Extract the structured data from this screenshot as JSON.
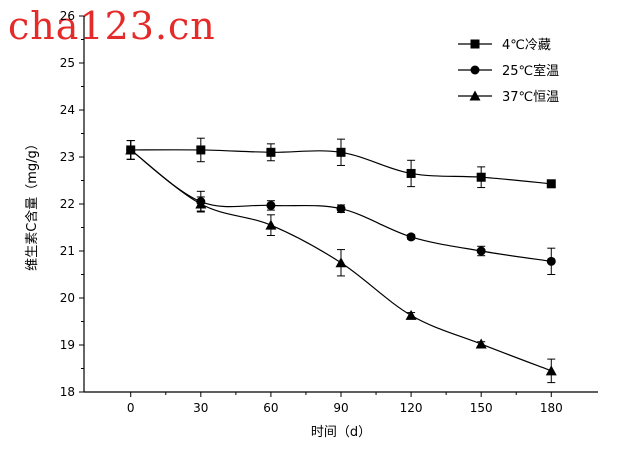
{
  "watermark": "cha123.cn",
  "chart_data": {
    "type": "line",
    "xlabel": "时间（d）",
    "ylabel": "维生素C含量（mg/g）",
    "x": [
      0,
      30,
      60,
      90,
      120,
      150,
      180
    ],
    "xlim": [
      -20,
      200
    ],
    "ylim": [
      18,
      26
    ],
    "xticks": [
      0,
      30,
      60,
      90,
      120,
      150,
      180
    ],
    "yticks": [
      18,
      19,
      20,
      21,
      22,
      23,
      24,
      25,
      26
    ],
    "grid": false,
    "legend_position": "top-right",
    "series": [
      {
        "name": "4℃冷藏",
        "marker": "square",
        "values": [
          23.15,
          23.15,
          23.1,
          23.1,
          22.65,
          22.57,
          22.43
        ],
        "errors": [
          0.2,
          0.25,
          0.18,
          0.28,
          0.28,
          0.22,
          0.05
        ]
      },
      {
        "name": "25℃室温",
        "marker": "circle",
        "values": [
          23.15,
          22.05,
          21.97,
          21.9,
          21.3,
          21.0,
          20.78
        ],
        "errors": [
          0.2,
          0.22,
          0.1,
          0.08,
          0.05,
          0.1,
          0.28
        ]
      },
      {
        "name": "37℃恒温",
        "marker": "triangle",
        "values": [
          23.15,
          22.0,
          21.55,
          20.75,
          19.63,
          19.02,
          18.45
        ],
        "errors": [
          0.2,
          0.15,
          0.22,
          0.28,
          0.06,
          0.05,
          0.25
        ]
      }
    ]
  }
}
